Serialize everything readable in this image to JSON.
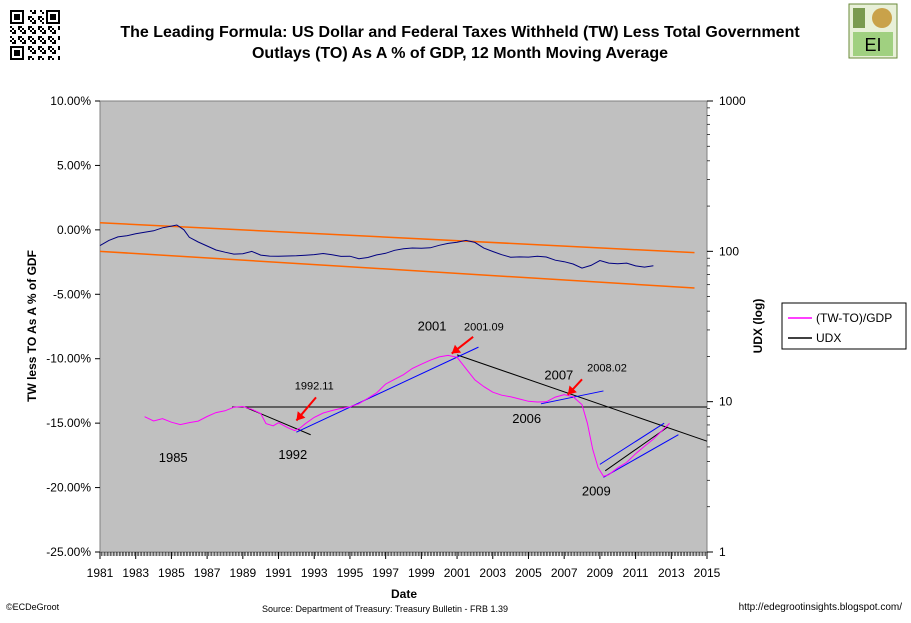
{
  "title_line1": "The Leading Formula:  US Dollar and Federal Taxes Withheld (TW) Less Total Government",
  "title_line2": "Outlays (TO) As A % of GDP, 12 Month Moving Average",
  "logo_text": "EI",
  "footer": {
    "left": "©ECDeGroot",
    "center": "Source:  Department of Treasury: Treasury Bulletin -  FRB 1.39",
    "right": "http://edegrootinsights.blogspot.com/"
  },
  "colors": {
    "plot_bg": "#c0c0c0",
    "tw_to": "#ff00ff",
    "udx": "#000080",
    "channel": "#ff6600",
    "trend": "#0000ff",
    "arrow": "#ff0000",
    "hline": "#000000"
  },
  "chart_data": {
    "type": "line",
    "xlabel": "Date",
    "ylabel_left": "TW less TO As A %  of GDF",
    "ylabel_right": "UDX (log)",
    "xlim": [
      1981,
      2015
    ],
    "ylim_left": [
      -25,
      10
    ],
    "ylim_right": [
      1,
      1000
    ],
    "right_scale": "log",
    "x_ticks": [
      "1981",
      "1983",
      "1985",
      "1987",
      "1989",
      "1991",
      "1993",
      "1995",
      "1997",
      "1999",
      "2001",
      "2003",
      "2005",
      "2007",
      "2009",
      "2011",
      "2013",
      "2015"
    ],
    "y_left_ticks": [
      "10.00%",
      "5.00%",
      "0.00%",
      "-5.00%",
      "-10.00%",
      "-15.00%",
      "-20.00%",
      "-25.00%"
    ],
    "y_right_ticks": [
      "1000",
      "100",
      "10",
      "1"
    ],
    "grid": false,
    "legend_position": "right",
    "series": [
      {
        "name": "(TW-TO)/GDP",
        "axis": "left",
        "points": [
          [
            1983.5,
            -14.5
          ],
          [
            1984.0,
            -14.8
          ],
          [
            1984.5,
            -14.7
          ],
          [
            1985.0,
            -14.9
          ],
          [
            1985.5,
            -15.1
          ],
          [
            1986.0,
            -15.0
          ],
          [
            1986.5,
            -14.8
          ],
          [
            1987.0,
            -14.5
          ],
          [
            1987.5,
            -14.2
          ],
          [
            1988.0,
            -14.0
          ],
          [
            1988.5,
            -13.8
          ],
          [
            1989.0,
            -13.7
          ],
          [
            1989.5,
            -13.9
          ],
          [
            1990.0,
            -14.3
          ],
          [
            1990.3,
            -15.0
          ],
          [
            1990.7,
            -15.2
          ],
          [
            1991.0,
            -15.0
          ],
          [
            1991.5,
            -15.3
          ],
          [
            1991.9,
            -15.6
          ],
          [
            1992.2,
            -15.4
          ],
          [
            1992.5,
            -15.0
          ],
          [
            1993.0,
            -14.6
          ],
          [
            1993.5,
            -14.2
          ],
          [
            1994.0,
            -14.0
          ],
          [
            1994.5,
            -13.9
          ],
          [
            1995.0,
            -13.7
          ],
          [
            1995.5,
            -13.5
          ],
          [
            1996.0,
            -13.1
          ],
          [
            1996.5,
            -12.6
          ],
          [
            1997.0,
            -12.0
          ],
          [
            1997.5,
            -11.6
          ],
          [
            1998.0,
            -11.2
          ],
          [
            1998.5,
            -10.8
          ],
          [
            1999.0,
            -10.4
          ],
          [
            1999.5,
            -10.1
          ],
          [
            2000.0,
            -9.9
          ],
          [
            2000.5,
            -9.7
          ],
          [
            2001.0,
            -9.9
          ],
          [
            2001.5,
            -10.8
          ],
          [
            2002.0,
            -11.6
          ],
          [
            2002.5,
            -12.2
          ],
          [
            2003.0,
            -12.6
          ],
          [
            2003.5,
            -12.8
          ],
          [
            2004.0,
            -13.0
          ],
          [
            2004.5,
            -13.1
          ],
          [
            2005.0,
            -13.3
          ],
          [
            2005.5,
            -13.4
          ],
          [
            2006.0,
            -13.3
          ],
          [
            2006.5,
            -13.0
          ],
          [
            2007.0,
            -12.8
          ],
          [
            2007.5,
            -12.9
          ],
          [
            2008.0,
            -13.6
          ],
          [
            2008.3,
            -15.0
          ],
          [
            2008.6,
            -17.0
          ],
          [
            2008.9,
            -18.5
          ],
          [
            2009.2,
            -19.1
          ],
          [
            2009.5,
            -19.0
          ],
          [
            2010.0,
            -18.5
          ],
          [
            2010.5,
            -18.0
          ],
          [
            2011.0,
            -17.4
          ],
          [
            2011.5,
            -16.8
          ],
          [
            2012.0,
            -16.2
          ],
          [
            2012.5,
            -15.6
          ],
          [
            2012.9,
            -15.0
          ]
        ]
      },
      {
        "name": "UDX",
        "axis": "right",
        "points": [
          [
            1981.0,
            110
          ],
          [
            1981.5,
            118
          ],
          [
            1982.0,
            124
          ],
          [
            1982.5,
            128
          ],
          [
            1983.0,
            130
          ],
          [
            1983.5,
            134
          ],
          [
            1984.0,
            138
          ],
          [
            1984.5,
            142
          ],
          [
            1985.0,
            148
          ],
          [
            1985.3,
            150
          ],
          [
            1985.7,
            138
          ],
          [
            1986.0,
            125
          ],
          [
            1986.5,
            115
          ],
          [
            1987.0,
            108
          ],
          [
            1987.5,
            103
          ],
          [
            1988.0,
            98
          ],
          [
            1988.5,
            96
          ],
          [
            1989.0,
            97
          ],
          [
            1989.5,
            99
          ],
          [
            1990.0,
            95
          ],
          [
            1990.5,
            93
          ],
          [
            1991.0,
            92
          ],
          [
            1991.5,
            94
          ],
          [
            1992.0,
            93
          ],
          [
            1992.5,
            94
          ],
          [
            1993.0,
            96
          ],
          [
            1993.5,
            96
          ],
          [
            1994.0,
            95
          ],
          [
            1994.5,
            93
          ],
          [
            1995.0,
            92
          ],
          [
            1995.5,
            90
          ],
          [
            1996.0,
            91
          ],
          [
            1996.5,
            94
          ],
          [
            1997.0,
            98
          ],
          [
            1997.5,
            101
          ],
          [
            1998.0,
            104
          ],
          [
            1998.5,
            106
          ],
          [
            1999.0,
            104
          ],
          [
            1999.5,
            106
          ],
          [
            2000.0,
            110
          ],
          [
            2000.5,
            112
          ],
          [
            2001.0,
            116
          ],
          [
            2001.5,
            118
          ],
          [
            2002.0,
            114
          ],
          [
            2002.5,
            106
          ],
          [
            2003.0,
            99
          ],
          [
            2003.5,
            95
          ],
          [
            2004.0,
            92
          ],
          [
            2004.5,
            91
          ],
          [
            2005.0,
            92
          ],
          [
            2005.5,
            93
          ],
          [
            2006.0,
            91
          ],
          [
            2006.5,
            88
          ],
          [
            2007.0,
            85
          ],
          [
            2007.5,
            82
          ],
          [
            2008.0,
            78
          ],
          [
            2008.5,
            80
          ],
          [
            2009.0,
            87
          ],
          [
            2009.5,
            84
          ],
          [
            2010.0,
            82
          ],
          [
            2010.5,
            84
          ],
          [
            2011.0,
            80
          ],
          [
            2011.5,
            78
          ],
          [
            2012.0,
            81
          ]
        ]
      }
    ],
    "annotations": [
      {
        "text": "1985",
        "x": 1985.1,
        "y": -18.0
      },
      {
        "text": "1992",
        "x": 1991.8,
        "y": -17.8
      },
      {
        "text": "1992.11",
        "x": 1993.0,
        "y": -12.4
      },
      {
        "text": "2001",
        "x": 1999.6,
        "y": -7.8
      },
      {
        "text": "2001.09",
        "x": 2002.5,
        "y": -7.8
      },
      {
        "text": "2006",
        "x": 2004.9,
        "y": -15.0
      },
      {
        "text": "2007",
        "x": 2006.7,
        "y": -11.6
      },
      {
        "text": "2008.02",
        "x": 2009.4,
        "y": -11.0
      },
      {
        "text": "2009",
        "x": 2008.8,
        "y": -20.6
      }
    ]
  }
}
